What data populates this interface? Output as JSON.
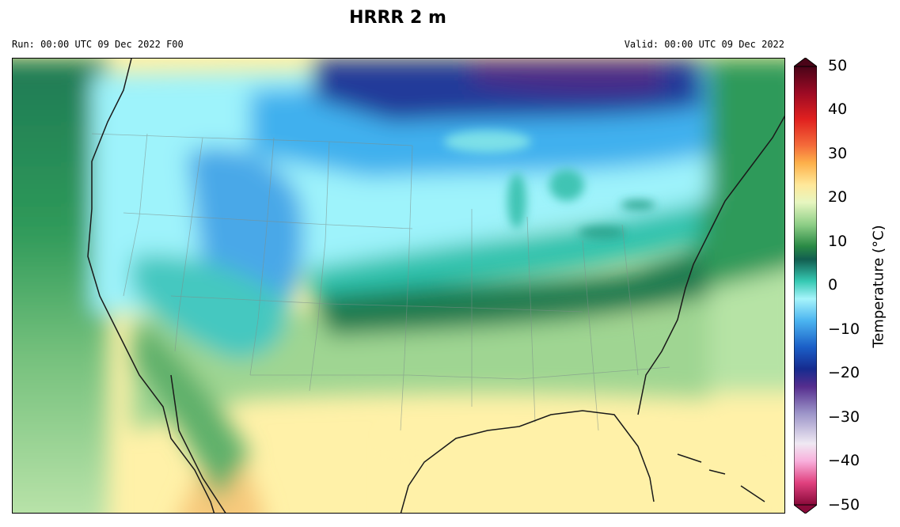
{
  "title": "HRRR 2 m",
  "run_label": "Run: 00:00 UTC 09 Dec 2022 F00",
  "valid_label": "Valid: 00:00 UTC 09 Dec 2022",
  "colorbar": {
    "label": "Temperature (°C)",
    "ticks": [
      "50",
      "40",
      "30",
      "20",
      "10",
      "0",
      "−10",
      "−20",
      "−30",
      "−40",
      "−50"
    ],
    "min": -50,
    "max": 50
  },
  "colors": {
    "hot": "#b40426",
    "warm": "#fff1a8",
    "mild": "#a8dca0",
    "green": "#2e8b57",
    "teal": "#20b2aa",
    "ice": "#9ef3fb",
    "blue": "#3a8ee8",
    "navy": "#1f2a8a",
    "purple": "#5a2a8a",
    "pink": "#e0307a"
  }
}
